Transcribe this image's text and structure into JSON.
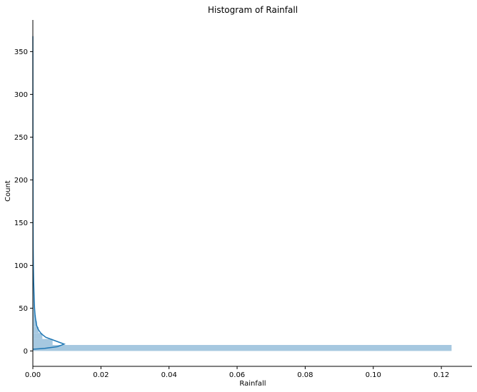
{
  "chart_data": {
    "type": "bar",
    "orientation": "horizontal",
    "title": "Histogram of Rainfall",
    "xlabel": "Rainfall",
    "ylabel": "Count",
    "xlim": [
      0,
      0.129
    ],
    "ylim": [
      -18,
      387
    ],
    "x_ticks": [
      "0.00",
      "0.02",
      "0.04",
      "0.06",
      "0.08",
      "0.10",
      "0.12"
    ],
    "y_ticks": [
      "0",
      "50",
      "100",
      "150",
      "200",
      "250",
      "300",
      "350"
    ],
    "grid": false,
    "legend": "none",
    "bins": [
      {
        "y0": 0,
        "y1": 7,
        "value": 0.123
      },
      {
        "y0": 7,
        "y1": 14,
        "value": 0.0058
      },
      {
        "y0": 14,
        "y1": 21,
        "value": 0.0028
      },
      {
        "y0": 21,
        "y1": 28,
        "value": 0.0017
      },
      {
        "y0": 28,
        "y1": 35,
        "value": 0.0012
      },
      {
        "y0": 35,
        "y1": 42,
        "value": 0.0009
      },
      {
        "y0": 42,
        "y1": 49,
        "value": 0.0006
      },
      {
        "y0": 49,
        "y1": 56,
        "value": 0.0005
      },
      {
        "y0": 56,
        "y1": 63,
        "value": 0.0004
      },
      {
        "y0": 63,
        "y1": 70,
        "value": 0.0003
      },
      {
        "y0": 70,
        "y1": 77,
        "value": 0.0003
      },
      {
        "y0": 77,
        "y1": 84,
        "value": 0.0002
      },
      {
        "y0": 84,
        "y1": 91,
        "value": 0.0002
      },
      {
        "y0": 91,
        "y1": 98,
        "value": 0.0002
      },
      {
        "y0": 98,
        "y1": 105,
        "value": 0.0001
      }
    ],
    "kde": {
      "y": [
        2,
        3,
        5,
        8,
        12,
        16,
        20,
        25,
        30,
        40,
        50,
        60,
        80,
        100,
        120,
        150,
        200,
        250,
        300,
        368
      ],
      "x": [
        0.0,
        0.0035,
        0.0072,
        0.0092,
        0.0065,
        0.0038,
        0.0025,
        0.0016,
        0.0011,
        0.0007,
        0.0005,
        0.0004,
        0.00025,
        0.00015,
        0.0001,
        7e-05,
        5e-05,
        3e-05,
        2e-05,
        1e-05
      ]
    },
    "colors": {
      "bar": "#a6c8e0",
      "kde": "#1f77b4",
      "axis": "#000000"
    }
  }
}
